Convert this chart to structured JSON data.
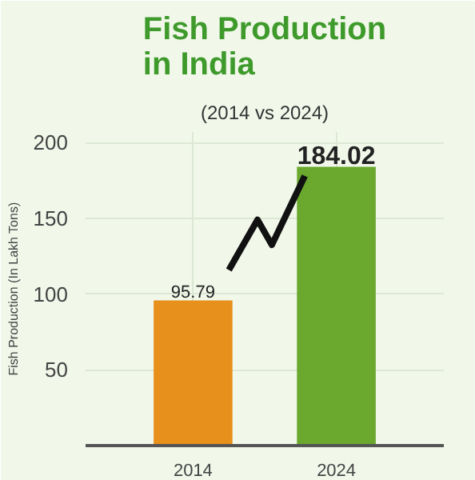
{
  "chart_data": {
    "type": "bar",
    "title": "Fish Production\nin India",
    "subtitle": "(2014 vs 2024)",
    "ylabel": "Fish Production (In Lakh Tons)",
    "categories": [
      "2014",
      "2024"
    ],
    "values": [
      95.79,
      184.02
    ],
    "colors": [
      "#e8901c",
      "#6aa82e"
    ],
    "ylim": [
      0,
      207
    ],
    "yticks": [
      50,
      100,
      150,
      200
    ],
    "grid": true,
    "data_labels": true
  }
}
